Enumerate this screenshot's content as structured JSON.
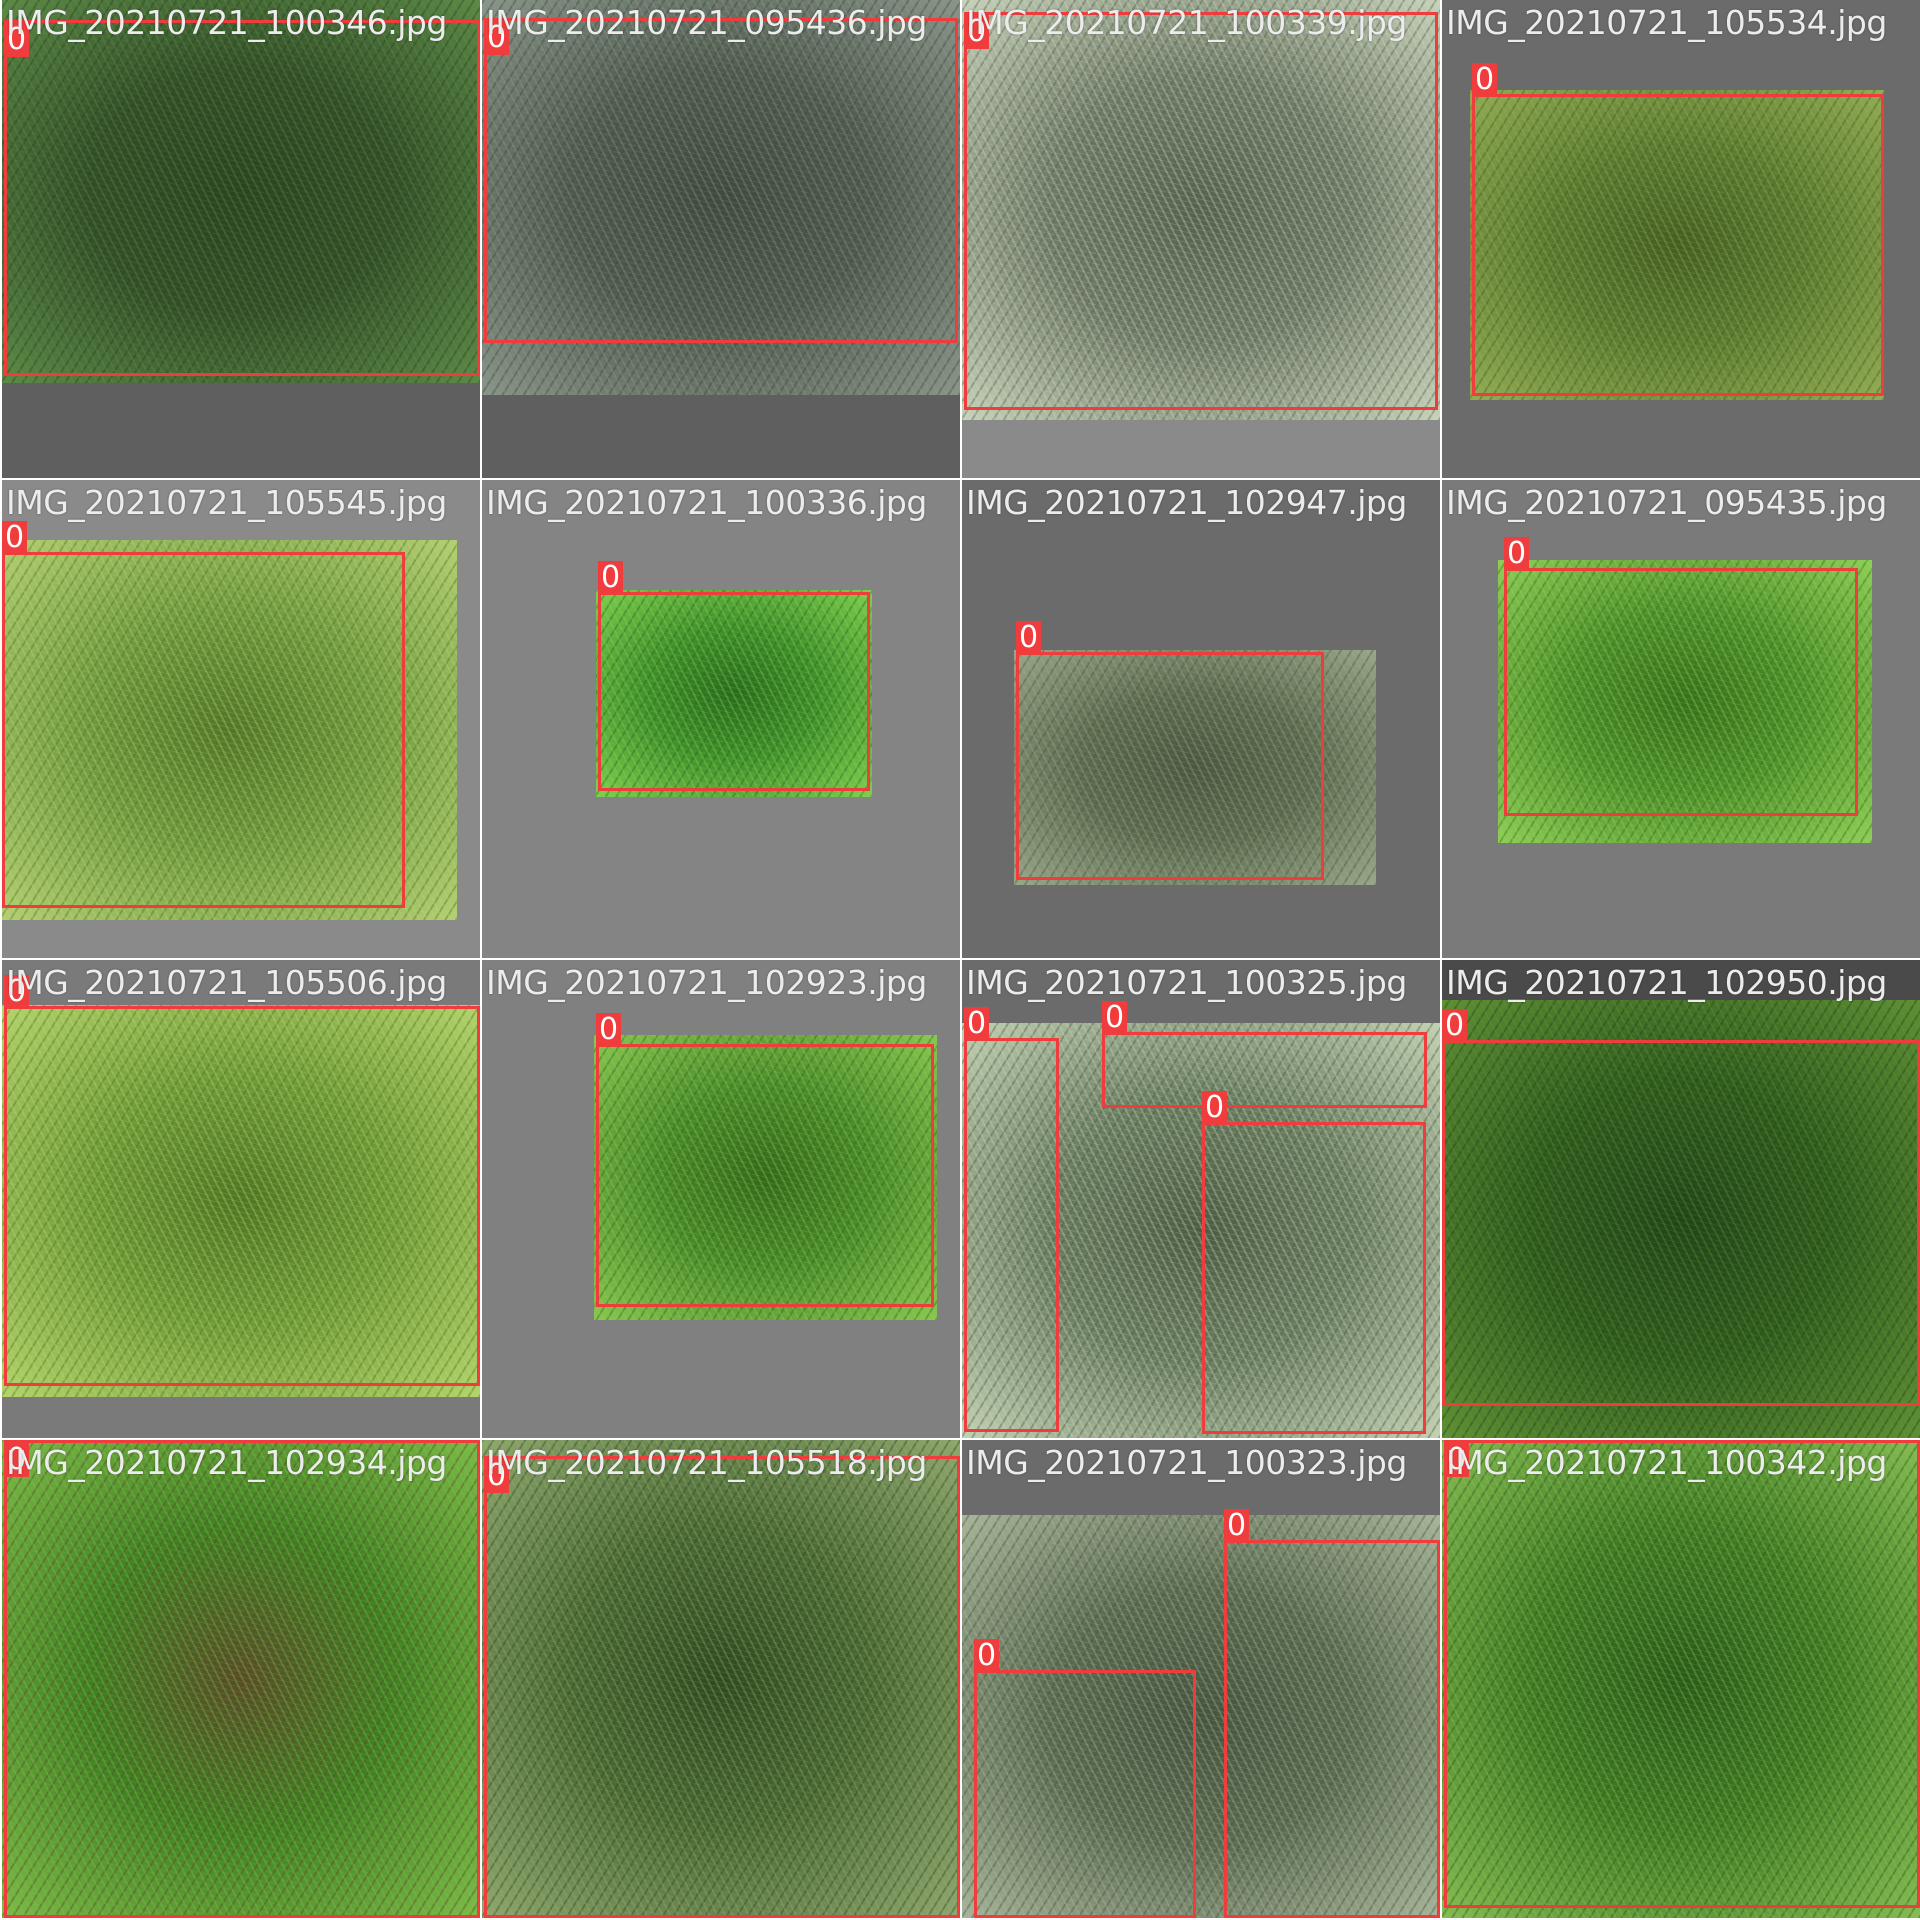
{
  "tiles": [
    {
      "filename": "IMG_20210721_100346.jpg",
      "background": "#5f5f5f",
      "photo": {
        "l": 0,
        "t": 0,
        "w": 478,
        "h": 383
      },
      "tone": [
        "#324e28",
        "#5d8a47",
        "#2a4322"
      ],
      "boxes": [
        {
          "l": 2,
          "t": 20,
          "w": 476,
          "h": 356,
          "label": "0"
        }
      ]
    },
    {
      "filename": "IMG_20210721_095436.jpg",
      "background": "#5f5f5f",
      "photo": {
        "l": 0,
        "t": 0,
        "w": 478,
        "h": 395
      },
      "tone": [
        "#4e5a4c",
        "#8a968a",
        "#3e4a3c"
      ],
      "boxes": [
        {
          "l": 2,
          "t": 18,
          "w": 474,
          "h": 325,
          "label": "0"
        }
      ]
    },
    {
      "filename": "IMG_20210721_100339.jpg",
      "background": "#8a8a8a",
      "photo": {
        "l": 0,
        "t": 0,
        "w": 478,
        "h": 420
      },
      "tone": [
        "#6e7a66",
        "#c9d3bb",
        "#55614f"
      ],
      "boxes": [
        {
          "l": 2,
          "t": 12,
          "w": 474,
          "h": 398,
          "label": "0"
        }
      ]
    },
    {
      "filename": "IMG_20210721_105534.jpg",
      "background": "#6b6b6b",
      "photo": {
        "l": 28,
        "t": 90,
        "w": 414,
        "h": 310
      },
      "tone": [
        "#5a7a30",
        "#93ad55",
        "#445e22"
      ],
      "boxes": [
        {
          "l": 30,
          "t": 94,
          "w": 412,
          "h": 302,
          "label": "0"
        }
      ]
    },
    {
      "filename": "IMG_20210721_105545.jpg",
      "background": "#8a8a8a",
      "photo": {
        "l": 0,
        "t": 60,
        "w": 455,
        "h": 380
      },
      "tone": [
        "#6f9a3e",
        "#b5d073",
        "#507528"
      ],
      "boxes": [
        {
          "l": 0,
          "t": 72,
          "w": 403,
          "h": 356,
          "label": "0"
        }
      ]
    },
    {
      "filename": "IMG_20210721_100336.jpg",
      "background": "#848484",
      "photo": {
        "l": 114,
        "t": 110,
        "w": 276,
        "h": 207
      },
      "tone": [
        "#3f8f2c",
        "#7fd050",
        "#2a6a1e"
      ],
      "boxes": [
        {
          "l": 116,
          "t": 112,
          "w": 272,
          "h": 199,
          "label": "0"
        }
      ]
    },
    {
      "filename": "IMG_20210721_102947.jpg",
      "background": "#6b6b6b",
      "photo": {
        "l": 52,
        "t": 170,
        "w": 362,
        "h": 235
      },
      "tone": [
        "#5c6a4e",
        "#9aa78a",
        "#4a5840"
      ],
      "boxes": [
        {
          "l": 54,
          "t": 172,
          "w": 308,
          "h": 228,
          "label": "0"
        }
      ]
    },
    {
      "filename": "IMG_20210721_095435.jpg",
      "background": "#7a7a7a",
      "photo": {
        "l": 56,
        "t": 80,
        "w": 374,
        "h": 283
      },
      "tone": [
        "#4e8e2a",
        "#8fcf58",
        "#36701c"
      ],
      "boxes": [
        {
          "l": 62,
          "t": 88,
          "w": 354,
          "h": 248,
          "label": "0"
        }
      ]
    },
    {
      "filename": "IMG_20210721_105506.jpg",
      "background": "#7a7a7a",
      "photo": {
        "l": 0,
        "t": 45,
        "w": 478,
        "h": 392
      },
      "tone": [
        "#6e9a38",
        "#b5d46c",
        "#4e7624"
      ],
      "boxes": [
        {
          "l": 2,
          "t": 46,
          "w": 476,
          "h": 380,
          "label": "0"
        }
      ]
    },
    {
      "filename": "IMG_20210721_102923.jpg",
      "background": "#808080",
      "photo": {
        "l": 112,
        "t": 75,
        "w": 343,
        "h": 285
      },
      "tone": [
        "#4a8a2a",
        "#8ac852",
        "#33681c"
      ],
      "boxes": [
        {
          "l": 114,
          "t": 84,
          "w": 338,
          "h": 263,
          "label": "0"
        }
      ]
    },
    {
      "filename": "IMG_20210721_100325.jpg",
      "background": "#6b6b6b",
      "photo": {
        "l": 0,
        "t": 63,
        "w": 478,
        "h": 415
      },
      "tone": [
        "#6a7c60",
        "#c4d2b4",
        "#4c5c44"
      ],
      "boxes": [
        {
          "l": 2,
          "t": 78,
          "w": 95,
          "h": 394,
          "label": "0"
        },
        {
          "l": 140,
          "t": 72,
          "w": 325,
          "h": 76,
          "label": "0"
        },
        {
          "l": 240,
          "t": 162,
          "w": 224,
          "h": 312,
          "label": "0"
        }
      ]
    },
    {
      "filename": "IMG_20210721_102950.jpg",
      "background": "#4a4a4a",
      "photo": {
        "l": 0,
        "t": 40,
        "w": 478,
        "h": 438
      },
      "tone": [
        "#2f5a1e",
        "#5f9034",
        "#22441a"
      ],
      "boxes": [
        {
          "l": 0,
          "t": 80,
          "w": 478,
          "h": 366,
          "label": "0"
        }
      ]
    },
    {
      "filename": "IMG_20210721_102934.jpg",
      "background": "#7a7a7a",
      "photo": {
        "l": 0,
        "t": 0,
        "w": 478,
        "h": 478
      },
      "tone": [
        "#3f7e22",
        "#7cbc48",
        "#5a4a2a"
      ],
      "boxes": [
        {
          "l": 2,
          "t": 0,
          "w": 476,
          "h": 478,
          "label": "0"
        }
      ]
    },
    {
      "filename": "IMG_20210721_105518.jpg",
      "background": "#7a7a7a",
      "photo": {
        "l": 0,
        "t": 0,
        "w": 478,
        "h": 478
      },
      "tone": [
        "#4a6a32",
        "#90a870",
        "#2e4a20"
      ],
      "boxes": [
        {
          "l": 2,
          "t": 16,
          "w": 476,
          "h": 462,
          "label": "0"
        }
      ]
    },
    {
      "filename": "IMG_20210721_100323.jpg",
      "background": "#6b6b6b",
      "photo": {
        "l": 0,
        "t": 75,
        "w": 478,
        "h": 403
      },
      "tone": [
        "#5a6a50",
        "#a8b59a",
        "#45543e"
      ],
      "boxes": [
        {
          "l": 12,
          "t": 230,
          "w": 222,
          "h": 248,
          "label": "0"
        },
        {
          "l": 262,
          "t": 100,
          "w": 216,
          "h": 378,
          "label": "0"
        }
      ]
    },
    {
      "filename": "IMG_20210721_100342.jpg",
      "background": "#7a7a7a",
      "photo": {
        "l": 0,
        "t": 0,
        "w": 478,
        "h": 478
      },
      "tone": [
        "#3f7a24",
        "#86bc52",
        "#2a5a1a"
      ],
      "boxes": [
        {
          "l": 2,
          "t": 0,
          "w": 476,
          "h": 468,
          "label": "0"
        }
      ]
    }
  ]
}
